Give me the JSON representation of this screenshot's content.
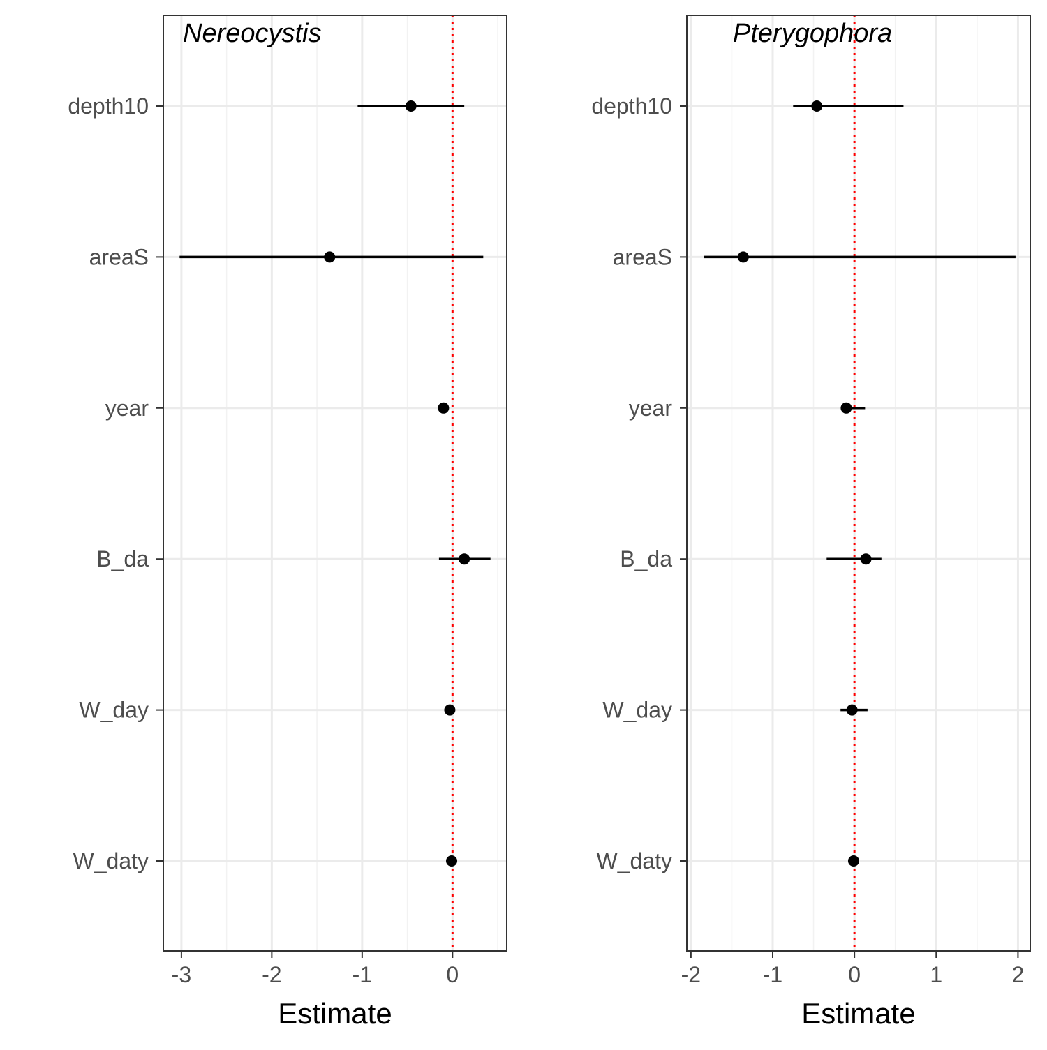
{
  "chart_data": [
    {
      "type": "scatter",
      "title": "Nereocystis",
      "xlabel": "Estimate",
      "ylabel": "",
      "xlim": [
        -3.2,
        0.6
      ],
      "xticks": [
        -3,
        -2,
        -1,
        0
      ],
      "xtick_labels": [
        "-3",
        "-2",
        "-1",
        "0"
      ],
      "categories": [
        "depth10",
        "areaS",
        "year",
        "B_da",
        "W_day",
        "W_daty"
      ],
      "estimates": [
        -0.46,
        -1.36,
        -0.1,
        0.13,
        -0.03,
        -0.01
      ],
      "lower": [
        -1.05,
        -3.02,
        -0.14,
        -0.15,
        -0.06,
        -0.03
      ],
      "upper": [
        0.13,
        0.34,
        -0.06,
        0.42,
        0.0,
        0.01
      ],
      "reference_line": 0,
      "grid": true
    },
    {
      "type": "scatter",
      "title": "Pterygophora",
      "xlabel": "Estimate",
      "ylabel": "",
      "xlim": [
        -2.05,
        2.15
      ],
      "xticks": [
        -2,
        -1,
        0,
        1,
        2
      ],
      "xtick_labels": [
        "-2",
        "-1",
        "0",
        "1",
        "2"
      ],
      "categories": [
        "depth10",
        "areaS",
        "year",
        "B_da",
        "W_day",
        "W_daty"
      ],
      "estimates": [
        -0.46,
        -1.36,
        -0.1,
        0.14,
        -0.03,
        -0.01
      ],
      "lower": [
        -0.75,
        -1.84,
        -0.13,
        -0.34,
        -0.17,
        -0.03
      ],
      "upper": [
        0.6,
        1.97,
        0.13,
        0.33,
        0.16,
        0.01
      ],
      "reference_line": 0,
      "grid": true
    }
  ],
  "colors": {
    "reference_line": "#ff0000",
    "points": "#000000",
    "grid_major": "#ebebeb",
    "grid_minor": "#f2f2f2",
    "panel_border": "#333333",
    "tick_label": "#4d4d4d"
  }
}
